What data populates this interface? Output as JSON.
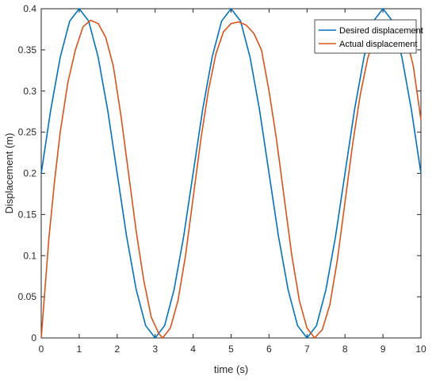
{
  "chart_data": {
    "type": "line",
    "title": "",
    "xlabel": "time (s)",
    "ylabel": "Displacement (m)",
    "xlim": [
      0,
      10
    ],
    "ylim": [
      0,
      0.4
    ],
    "x_ticks": [
      "0",
      "1",
      "2",
      "3",
      "4",
      "5",
      "6",
      "7",
      "8",
      "9",
      "10"
    ],
    "y_ticks": [
      "0",
      "0.05",
      "0.1",
      "0.15",
      "0.2",
      "0.25",
      "0.3",
      "0.35",
      "0.4"
    ],
    "grid": false,
    "legend_position": "top-right",
    "series": [
      {
        "name": "Desired displacement",
        "color": "#0072BD",
        "points": [
          [
            0,
            0.2
          ],
          [
            0.25,
            0.277
          ],
          [
            0.5,
            0.341
          ],
          [
            0.75,
            0.385
          ],
          [
            1,
            0.4
          ],
          [
            1.25,
            0.385
          ],
          [
            1.5,
            0.341
          ],
          [
            1.75,
            0.277
          ],
          [
            2,
            0.2
          ],
          [
            2.25,
            0.123
          ],
          [
            2.5,
            0.059
          ],
          [
            2.75,
            0.015
          ],
          [
            3,
            0
          ],
          [
            3.25,
            0.015
          ],
          [
            3.5,
            0.059
          ],
          [
            3.75,
            0.123
          ],
          [
            4,
            0.2
          ],
          [
            4.25,
            0.277
          ],
          [
            4.5,
            0.341
          ],
          [
            4.75,
            0.385
          ],
          [
            5,
            0.4
          ],
          [
            5.25,
            0.385
          ],
          [
            5.5,
            0.341
          ],
          [
            5.75,
            0.277
          ],
          [
            6,
            0.2
          ],
          [
            6.25,
            0.123
          ],
          [
            6.5,
            0.059
          ],
          [
            6.75,
            0.015
          ],
          [
            7,
            0
          ],
          [
            7.25,
            0.015
          ],
          [
            7.5,
            0.059
          ],
          [
            7.75,
            0.123
          ],
          [
            8,
            0.2
          ],
          [
            8.25,
            0.277
          ],
          [
            8.5,
            0.341
          ],
          [
            8.75,
            0.385
          ],
          [
            9,
            0.4
          ],
          [
            9.25,
            0.385
          ],
          [
            9.5,
            0.341
          ],
          [
            9.75,
            0.277
          ],
          [
            10,
            0.2
          ]
        ]
      },
      {
        "name": "Actual displacement",
        "color": "#D95319",
        "points": [
          [
            0,
            0
          ],
          [
            0.1,
            0.06
          ],
          [
            0.2,
            0.12
          ],
          [
            0.35,
            0.19
          ],
          [
            0.5,
            0.25
          ],
          [
            0.7,
            0.31
          ],
          [
            0.9,
            0.35
          ],
          [
            1.1,
            0.378
          ],
          [
            1.3,
            0.386
          ],
          [
            1.5,
            0.382
          ],
          [
            1.7,
            0.365
          ],
          [
            1.9,
            0.33
          ],
          [
            2.1,
            0.27
          ],
          [
            2.3,
            0.2
          ],
          [
            2.5,
            0.13
          ],
          [
            2.7,
            0.07
          ],
          [
            2.9,
            0.025
          ],
          [
            3.1,
            0.005
          ],
          [
            3.2,
            0
          ],
          [
            3.4,
            0.012
          ],
          [
            3.6,
            0.045
          ],
          [
            3.8,
            0.1
          ],
          [
            4,
            0.17
          ],
          [
            4.2,
            0.24
          ],
          [
            4.4,
            0.3
          ],
          [
            4.6,
            0.345
          ],
          [
            4.8,
            0.372
          ],
          [
            5,
            0.382
          ],
          [
            5.2,
            0.384
          ],
          [
            5.4,
            0.38
          ],
          [
            5.6,
            0.37
          ],
          [
            5.8,
            0.35
          ],
          [
            6,
            0.3
          ],
          [
            6.2,
            0.24
          ],
          [
            6.4,
            0.17
          ],
          [
            6.6,
            0.1
          ],
          [
            6.8,
            0.045
          ],
          [
            7,
            0.012
          ],
          [
            7.2,
            0
          ],
          [
            7.4,
            0.01
          ],
          [
            7.6,
            0.04
          ],
          [
            7.8,
            0.095
          ],
          [
            8,
            0.165
          ],
          [
            8.2,
            0.235
          ],
          [
            8.4,
            0.295
          ],
          [
            8.6,
            0.34
          ],
          [
            8.8,
            0.368
          ],
          [
            9,
            0.38
          ],
          [
            9.2,
            0.384
          ],
          [
            9.4,
            0.38
          ],
          [
            9.6,
            0.368
          ],
          [
            9.8,
            0.33
          ],
          [
            10,
            0.265
          ]
        ]
      }
    ]
  }
}
